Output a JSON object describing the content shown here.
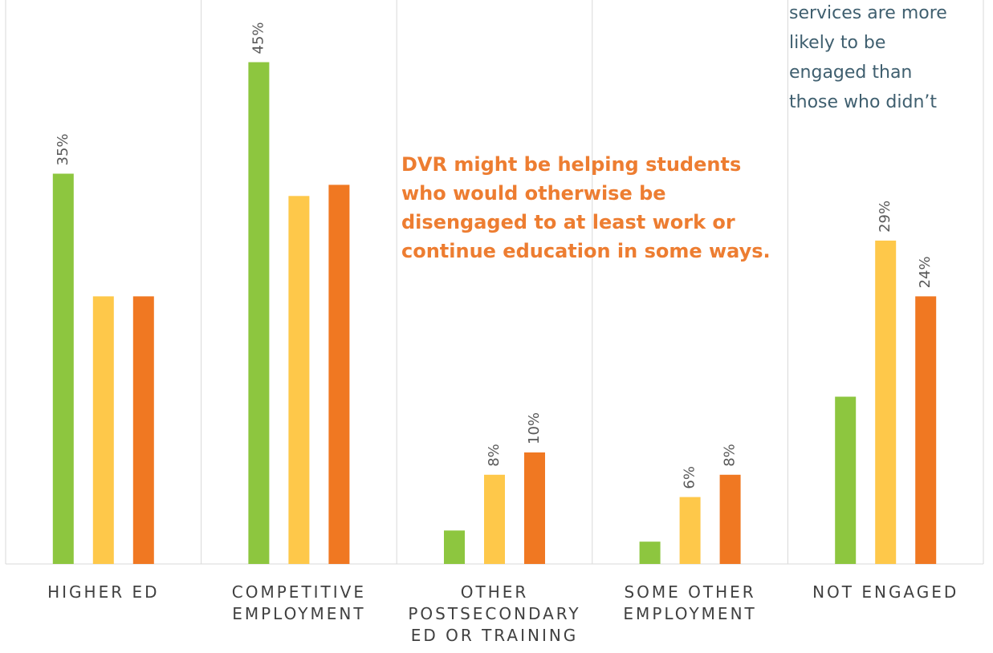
{
  "chart_data": {
    "type": "bar",
    "categories": [
      "HIGHER ED",
      "COMPETITIVE EMPLOYMENT",
      "OTHER POSTSECONDARY ED OR TRAINING",
      "SOME OTHER EMPLOYMENT",
      "NOT ENGAGED"
    ],
    "series": [
      {
        "color": "#8dc63f",
        "values": [
          35,
          45,
          3,
          2,
          15
        ],
        "value_labels": [
          "35%",
          "45%",
          null,
          null,
          null
        ]
      },
      {
        "color": "#fec84a",
        "values": [
          24,
          33,
          8,
          6,
          29
        ],
        "value_labels": [
          null,
          null,
          "8%",
          "6%",
          "29%"
        ]
      },
      {
        "color": "#f07822",
        "values": [
          24,
          34,
          10,
          8,
          24
        ],
        "value_labels": [
          null,
          null,
          "10%",
          "8%",
          "24%"
        ]
      }
    ],
    "ylim": [
      0,
      50
    ],
    "annotations": [
      {
        "color": "#ed7d31",
        "lines": [
          "DVR might be helping students",
          "who would otherwise be",
          "disengaged to at least work or",
          "continue education in some ways."
        ]
      },
      {
        "color": "#3f5f6f",
        "lines": [
          "services are more",
          "likely to be",
          "engaged than",
          "those who didn’t"
        ]
      }
    ]
  }
}
